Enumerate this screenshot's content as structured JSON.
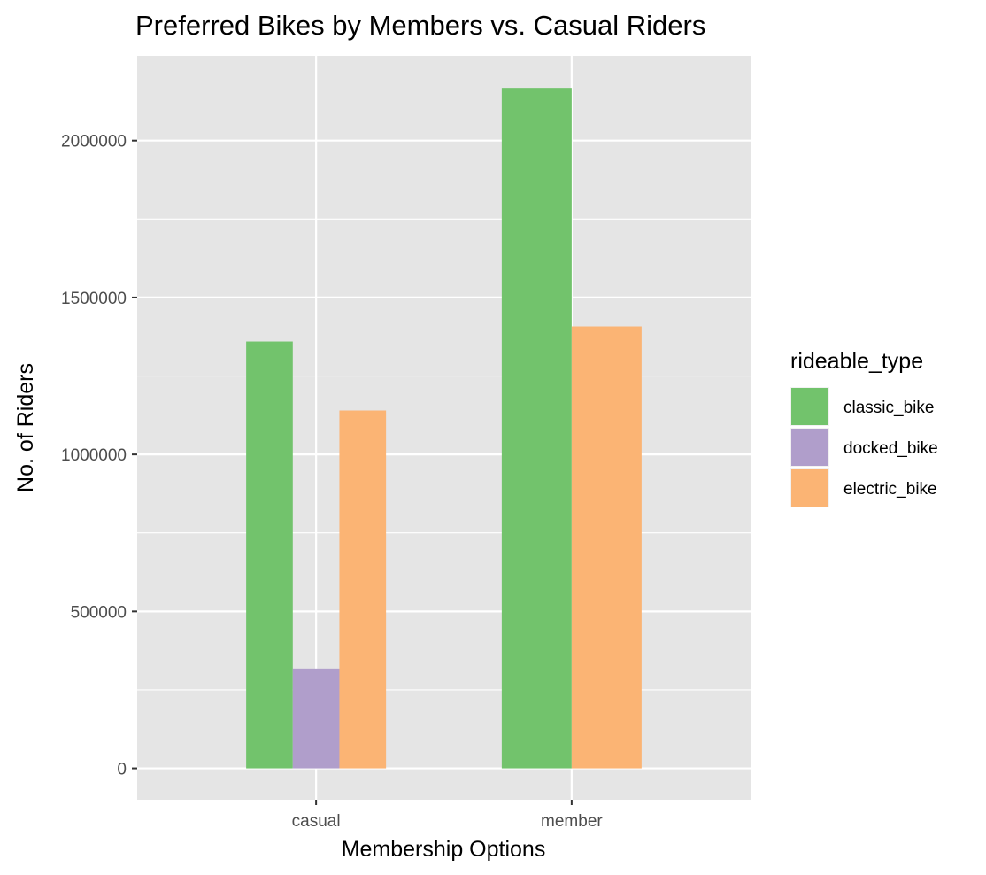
{
  "chart_data": {
    "type": "bar",
    "title": "Preferred Bikes by Members vs. Casual Riders",
    "xlabel": "Membership Options",
    "ylabel": "No. of Riders",
    "categories": [
      "casual",
      "member"
    ],
    "series": [
      {
        "name": "classic_bike",
        "values": [
          1360000,
          2168000
        ],
        "color": "#72c36c"
      },
      {
        "name": "docked_bike",
        "values": [
          318000,
          null
        ],
        "color": "#b09ecb"
      },
      {
        "name": "electric_bike",
        "values": [
          1140000,
          1408000
        ],
        "color": "#fbb474"
      }
    ],
    "ylim": [
      -100000,
      2270000
    ],
    "y_ticks": [
      0,
      500000,
      1000000,
      1500000,
      2000000
    ],
    "y_tick_labels": [
      "0",
      "500000",
      "1000000",
      "1500000",
      "2000000"
    ],
    "legend": {
      "title": "rideable_type",
      "position": "right"
    },
    "grid": true,
    "panel_background": "#e5e5e5",
    "grid_color": "#ffffff"
  }
}
